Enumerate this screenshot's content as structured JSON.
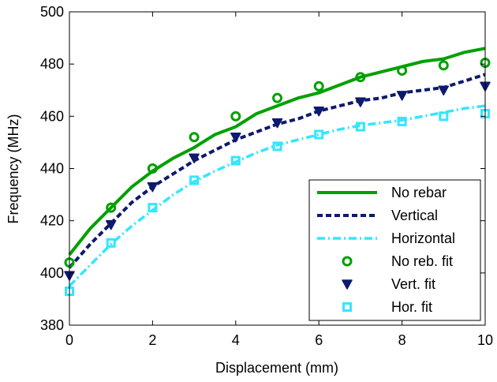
{
  "chart_data": {
    "type": "line",
    "title": "",
    "xlabel": "Displacement (mm)",
    "ylabel": "Frequency (MHz)",
    "xlim": [
      0,
      10
    ],
    "ylim": [
      380,
      500
    ],
    "xticks": [
      0,
      2,
      4,
      6,
      8,
      10
    ],
    "yticks": [
      380,
      400,
      420,
      440,
      460,
      480,
      500
    ],
    "grid": false,
    "legend_position": "bottom-right",
    "lines": [
      {
        "name": "No rebar",
        "color": "#00a000",
        "style": "solid",
        "x": [
          0,
          0.5,
          1,
          1.5,
          2,
          2.5,
          3,
          3.5,
          4,
          4.5,
          5,
          5.5,
          6,
          6.5,
          7,
          7.5,
          8,
          8.5,
          9,
          9.5,
          10
        ],
        "y": [
          407,
          417,
          425,
          433,
          439,
          444,
          448,
          453,
          456,
          461,
          464,
          467,
          469,
          472,
          475,
          477,
          479,
          481,
          482,
          484.5,
          486
        ]
      },
      {
        "name": "Vertical",
        "color": "#0d1a6e",
        "style": "dashed",
        "x": [
          0,
          0.5,
          1,
          1.5,
          2,
          2.5,
          3,
          3.5,
          4,
          4.5,
          5,
          5.5,
          6,
          6.5,
          7,
          7.5,
          8,
          8.5,
          9,
          9.5,
          10
        ],
        "y": [
          402,
          411,
          419,
          427,
          433,
          438,
          443,
          447,
          451,
          454,
          457,
          459,
          462,
          464,
          466,
          467,
          469,
          470,
          471,
          473.5,
          476
        ]
      },
      {
        "name": "Horizontal",
        "color": "#33e6ff",
        "style": "dashdot",
        "x": [
          0,
          0.5,
          1,
          1.5,
          2,
          2.5,
          3,
          3.5,
          4,
          4.5,
          5,
          5.5,
          6,
          6.5,
          7,
          7.5,
          8,
          8.5,
          9,
          9.5,
          10
        ],
        "y": [
          395,
          403,
          411,
          418,
          424,
          430,
          435,
          439,
          442.5,
          446,
          449,
          451,
          453,
          455,
          456.5,
          457.5,
          458.5,
          460,
          461.5,
          463,
          464
        ]
      }
    ],
    "markers": [
      {
        "name": "No reb. fit",
        "color": "#00a000",
        "symbol": "circle",
        "x": [
          0,
          1,
          2,
          3,
          4,
          5,
          6,
          7,
          8,
          9,
          10
        ],
        "y": [
          404,
          425,
          440,
          452,
          460,
          467,
          471.5,
          475,
          477.5,
          479.5,
          480.5
        ]
      },
      {
        "name": "Vert. fit",
        "color": "#0d1a6e",
        "symbol": "triangle-down",
        "x": [
          0,
          1,
          2,
          3,
          4,
          5,
          6,
          7,
          8,
          9,
          10
        ],
        "y": [
          399,
          418.5,
          433,
          444,
          452,
          457.5,
          462,
          465.5,
          468,
          470,
          471.5
        ]
      },
      {
        "name": "Hor. fit",
        "color": "#33e6ff",
        "symbol": "square",
        "x": [
          0,
          1,
          2,
          3,
          4,
          5,
          6,
          7,
          8,
          9,
          10
        ],
        "y": [
          393,
          411.5,
          425,
          435.5,
          443,
          448.5,
          453,
          456,
          458,
          460,
          461
        ]
      }
    ]
  }
}
